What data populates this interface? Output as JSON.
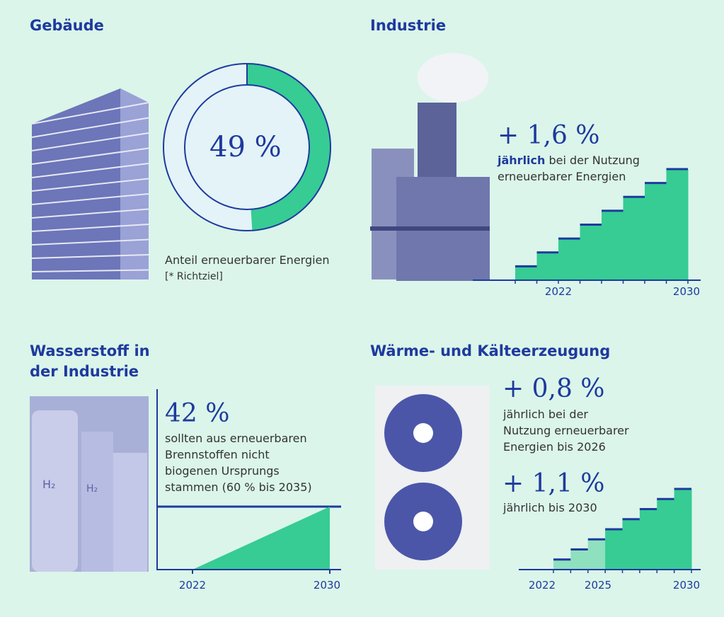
{
  "sections": {
    "gebaeude": {
      "title": "Gebäude",
      "value": "49 %",
      "caption": "Anteil erneuerbarer Energien",
      "note": "[* Richtziel]"
    },
    "industrie": {
      "title": "Industrie",
      "value": "+ 1,6 %",
      "text_bold": "jährlich",
      "text_rest": " bei der Nutzung",
      "text_line2": "erneuerbarer Energien"
    },
    "wasserstoff": {
      "title_line1": "Wasserstoff in",
      "title_line2": "der Industrie",
      "value": "42 %",
      "text": [
        "sollten aus erneuerbaren",
        "Brennstoffen nicht",
        "biogenen Ursprungs",
        "stammen (60 % bis 2035)"
      ]
    },
    "waerme": {
      "title": "Wärme- und Kälteerzeugung",
      "value1": "+ 0,8 %",
      "text1": [
        "jährlich bei der",
        "Nutzung erneuerbarer",
        "Energien bis 2026"
      ],
      "value2": "+ 1,1 %",
      "text2": "jährlich bis 2030"
    }
  },
  "colors": {
    "blue": "#1e3a9e",
    "green": "#36cc94",
    "light_green": "#8fe0bf",
    "background": "#dbf5ea"
  },
  "chart_data": [
    {
      "type": "pie",
      "title": "Gebäude",
      "values": [
        49,
        51
      ],
      "labels": [
        "erneuerbar",
        "Rest"
      ]
    },
    {
      "type": "bar",
      "title": "Industrie",
      "steps": [
        1,
        2,
        3,
        4,
        5,
        6,
        7,
        8
      ],
      "x_labels": [
        "2022",
        "2030"
      ]
    },
    {
      "type": "area",
      "title": "Wasserstoff in der Industrie",
      "x": [
        2022,
        2030
      ],
      "y": [
        0,
        42
      ],
      "target": 42,
      "x_labels": [
        "2022",
        "2030"
      ]
    },
    {
      "type": "bar",
      "title": "Wärme- und Kälteerzeugung",
      "steps": [
        1,
        2,
        3,
        4,
        5,
        6,
        7,
        8
      ],
      "light_steps": 3,
      "x_labels": [
        "2022",
        "2025",
        "2030"
      ]
    }
  ]
}
